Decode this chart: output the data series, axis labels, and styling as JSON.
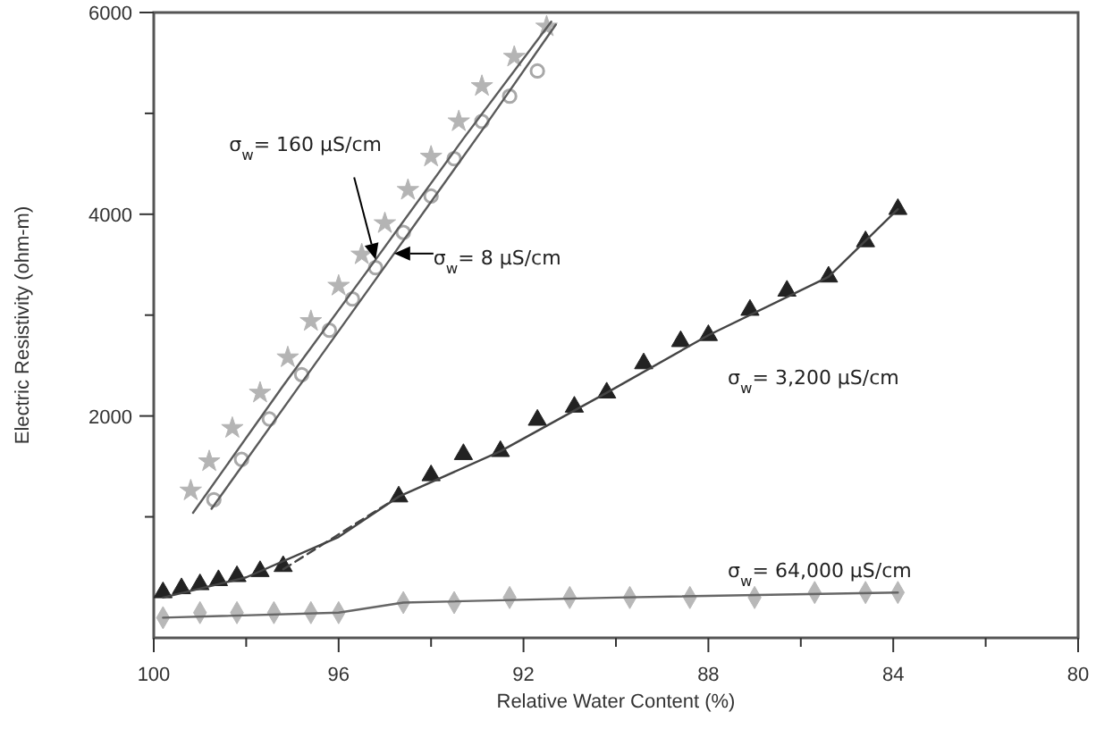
{
  "chart_data": {
    "type": "scatter",
    "xlabel": "Relative Water Content (%)",
    "ylabel": "Electric Resistivity (ohm-m)",
    "xlim": [
      100,
      80
    ],
    "ylim": [
      -200,
      6000
    ],
    "xticks": [
      100,
      {
        "value": 98,
        "label": null
      },
      96,
      {
        "value": 94,
        "label": null
      },
      92,
      {
        "value": 90,
        "label": null
      },
      88,
      {
        "value": 86,
        "label": null
      },
      84,
      {
        "value": 82,
        "label": null
      },
      80
    ],
    "yticks": [
      {
        "value": 1000,
        "label": null
      },
      2000,
      {
        "value": 3000,
        "label": null
      },
      4000,
      {
        "value": 5000,
        "label": null
      },
      6000
    ],
    "grid": false,
    "series": [
      {
        "marker": "star",
        "color": "#b4b4b4",
        "x": [
          99.2,
          98.8,
          98.3,
          97.7,
          97.1,
          96.6,
          96.0,
          95.5,
          95.0,
          94.5,
          94.0,
          93.4,
          92.9,
          92.2,
          91.5
        ],
        "values": [
          1260,
          1550,
          1880,
          2230,
          2580,
          2940,
          3290,
          3600,
          3910,
          4240,
          4570,
          4920,
          5270,
          5560,
          5860
        ]
      },
      {
        "marker": "circle",
        "color": "#a8a8a8",
        "x": [
          98.7,
          98.1,
          97.5,
          96.8,
          96.2,
          95.7,
          95.2,
          94.6,
          94.0,
          93.5,
          92.9,
          92.3,
          91.7
        ],
        "values": [
          1170,
          1570,
          1970,
          2410,
          2850,
          3160,
          3470,
          3820,
          4180,
          4550,
          4920,
          5170,
          5420
        ]
      },
      {
        "marker": "triangle",
        "color": "#222222",
        "x": [
          99.8,
          99.4,
          99.0,
          98.6,
          98.2,
          97.7,
          97.2,
          94.7,
          94.0,
          93.3,
          92.5,
          91.7,
          90.9,
          90.2,
          89.4,
          88.6,
          88.0,
          87.1,
          86.3,
          85.4,
          84.6,
          83.9
        ],
        "values": [
          250,
          290,
          330,
          370,
          410,
          460,
          510,
          1200,
          1410,
          1620,
          1650,
          1960,
          2090,
          2230,
          2520,
          2740,
          2800,
          3050,
          3240,
          3380,
          3730,
          4050
        ]
      },
      {
        "marker": "diamond",
        "color": "#b8b8b8",
        "x": [
          99.8,
          99.0,
          98.2,
          97.4,
          96.6,
          96.0,
          94.6,
          93.5,
          92.3,
          91.0,
          89.7,
          88.4,
          87.0,
          85.7,
          84.6,
          83.9
        ],
        "values": [
          0,
          50,
          50,
          50,
          50,
          50,
          150,
          150,
          200,
          200,
          200,
          200,
          200,
          250,
          250,
          250
        ]
      },
      {
        "type": "line",
        "line_style": "solid",
        "color": "#5a5a5a",
        "x": [
          99.15,
          97.2,
          95.2,
          93.3,
          91.4
        ],
        "values": [
          1040,
          2300,
          3550,
          4750,
          5910
        ]
      },
      {
        "type": "line",
        "line_style": "solid",
        "color": "#5a5a5a",
        "x": [
          98.75,
          96.8,
          94.8,
          92.9,
          91.3
        ],
        "values": [
          1080,
          2330,
          3610,
          4830,
          5880
        ]
      },
      {
        "type": "line",
        "line_style": "solid",
        "color": "#444444",
        "x": [
          99.8,
          98.0,
          96.0,
          94.7,
          92.5,
          90.2,
          88.0,
          85.4,
          83.9
        ],
        "values": [
          200,
          400,
          800,
          1200,
          1650,
          2230,
          2800,
          3380,
          4050
        ]
      },
      {
        "type": "line",
        "line_style": "dashed",
        "color": "#444444",
        "x": [
          97.2,
          94.7
        ],
        "values": [
          480,
          1200
        ]
      },
      {
        "type": "line",
        "line_style": "solid",
        "color": "#666666",
        "x": [
          99.8,
          96.0,
          94.6,
          90.0,
          83.9
        ],
        "values": [
          0,
          50,
          150,
          200,
          250
        ]
      }
    ],
    "annotations": [
      {
        "text": "σ$_{w}$= 160 μS/cm",
        "x": 95.2,
        "y": 3550
      },
      {
        "text": "σ$_{w}$= 8 μS/cm",
        "x": 94.8,
        "y": 3610
      },
      "σ$_{w}$= 3,200 μS/cm",
      "σ$_{w}$= 64,000 μS/cm"
    ]
  }
}
